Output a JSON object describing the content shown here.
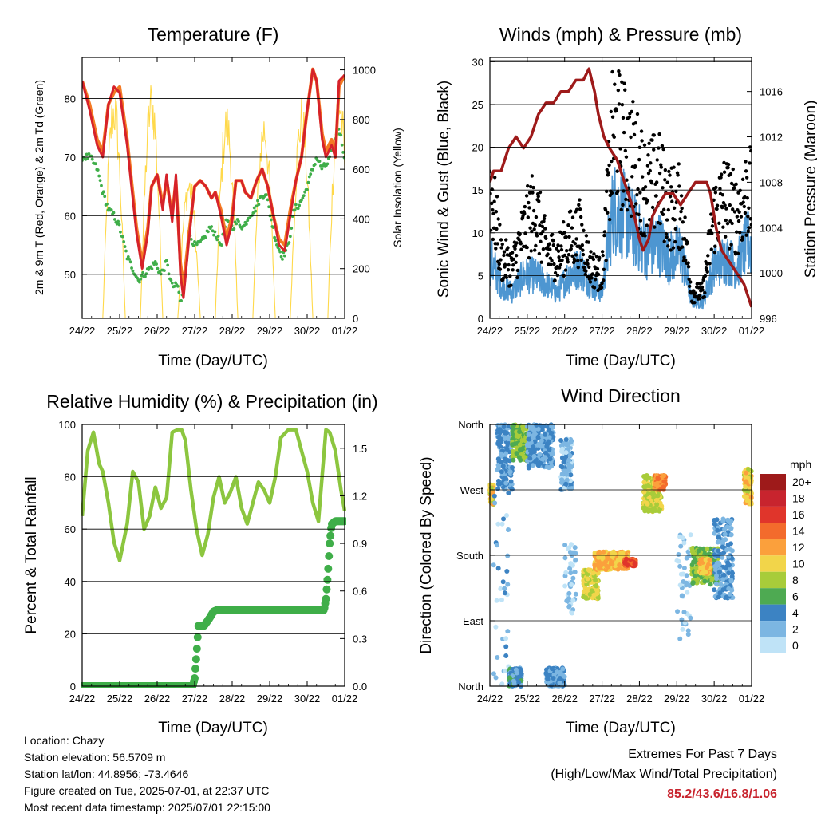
{
  "time_axis": {
    "xlabel": "Time (Day/UTC)",
    "ticks": [
      "24/22",
      "25/22",
      "26/22",
      "27/22",
      "28/22",
      "29/22",
      "30/22",
      "01/22"
    ]
  },
  "chart_data": [
    {
      "id": "temperature",
      "type": "line",
      "title": "Temperature (F)",
      "xlabel": "Time (Day/UTC)",
      "ylabel": "2m & 9m T (Red, Orange) & 2m Td (Green)",
      "ylabel_right": "Solar Insolation (Yellow)",
      "x_range_days": [
        0,
        7
      ],
      "ylim": [
        42.5,
        87
      ],
      "yticks": [
        50,
        60,
        70,
        80
      ],
      "ylim_right": [
        0,
        1050
      ],
      "yticks_right": [
        0,
        200,
        400,
        600,
        800,
        1000
      ],
      "grid": true,
      "series": [
        {
          "key": "t9m",
          "color": "#f47a24",
          "x": [
            0,
            0.2,
            0.4,
            0.55,
            0.7,
            0.85,
            1,
            1.2,
            1.35,
            1.45,
            1.6,
            1.75,
            1.85,
            2,
            2.15,
            2.25,
            2.4,
            2.5,
            2.62,
            2.7,
            2.85,
            3,
            3.15,
            3.3,
            3.45,
            3.55,
            3.7,
            3.85,
            4,
            4.1,
            4.25,
            4.35,
            4.5,
            4.65,
            4.8,
            4.95,
            5.1,
            5.25,
            5.4,
            5.55,
            5.7,
            5.85,
            6,
            6.15,
            6.25,
            6.4,
            6.5,
            6.65,
            6.75,
            6.85,
            7
          ],
          "y": [
            83,
            79,
            73,
            71,
            79,
            81,
            82,
            73,
            64,
            58,
            52,
            58,
            65,
            67,
            62,
            66,
            60,
            66,
            52,
            48,
            57,
            65,
            66,
            65,
            63,
            64,
            61,
            56,
            60,
            66,
            66,
            64,
            63,
            66,
            68,
            65,
            60,
            56,
            55,
            61,
            66,
            70,
            78,
            85,
            83,
            74,
            71,
            73,
            70,
            82,
            84
          ]
        },
        {
          "key": "t2m",
          "color": "#d6222a",
          "x": [
            0,
            0.2,
            0.4,
            0.55,
            0.7,
            0.85,
            1,
            1.2,
            1.35,
            1.45,
            1.6,
            1.75,
            1.85,
            2,
            2.15,
            2.25,
            2.4,
            2.5,
            2.62,
            2.7,
            2.85,
            3,
            3.15,
            3.3,
            3.45,
            3.55,
            3.7,
            3.85,
            4,
            4.1,
            4.25,
            4.35,
            4.5,
            4.65,
            4.8,
            4.95,
            5.1,
            5.25,
            5.4,
            5.55,
            5.7,
            5.85,
            6,
            6.15,
            6.25,
            6.4,
            6.5,
            6.65,
            6.75,
            6.85,
            7
          ],
          "y": [
            83,
            78,
            72,
            70,
            79,
            82,
            81,
            72,
            63,
            57,
            51,
            57,
            65,
            67,
            61,
            67,
            59,
            67,
            50,
            46,
            56,
            65,
            66,
            65,
            63,
            64,
            60,
            55,
            59,
            66,
            66,
            64,
            63,
            66,
            68,
            65,
            60,
            55,
            54,
            60,
            66,
            70,
            78,
            85,
            83,
            73,
            70,
            72,
            70,
            83,
            84
          ]
        },
        {
          "key": "td2m",
          "color": "#3fae49",
          "x": [
            0,
            0.2,
            0.4,
            0.55,
            0.7,
            0.85,
            1,
            1.2,
            1.35,
            1.5,
            1.65,
            1.8,
            1.95,
            2.1,
            2.25,
            2.4,
            2.55,
            2.62,
            2.7,
            2.85,
            3,
            3.1,
            3.25,
            3.4,
            3.55,
            3.7,
            3.85,
            4,
            4.15,
            4.3,
            4.45,
            4.6,
            4.75,
            4.9,
            5.05,
            5.2,
            5.35,
            5.5,
            5.65,
            5.8,
            5.95,
            6.1,
            6.25,
            6.4,
            6.55,
            6.7,
            6.85,
            7
          ],
          "y": [
            70,
            70,
            68,
            64,
            61,
            60,
            58,
            53,
            51,
            49,
            50,
            51,
            52,
            50,
            52,
            48,
            48,
            45,
            47,
            57,
            55,
            55,
            56,
            58,
            57,
            55,
            59,
            58,
            59,
            58,
            60,
            61,
            63,
            64,
            59,
            55,
            53,
            55,
            61,
            62,
            64,
            67,
            70,
            68,
            69,
            72,
            75,
            70
          ]
        },
        {
          "key": "solar",
          "color": "#ffd94a",
          "axis": "right",
          "days": [
            0,
            1,
            2,
            3,
            4,
            5,
            6
          ],
          "peaks": [
            950,
            980,
            600,
            880,
            860,
            900,
            980
          ]
        }
      ]
    },
    {
      "id": "winds",
      "type": "line",
      "title": "Winds (mph) & Pressure (mb)",
      "xlabel": "Time (Day/UTC)",
      "ylabel": "Sonic Wind & Gust (Blue, Black)",
      "ylabel_right": "Station Pressure (Maroon)",
      "x_range_days": [
        0,
        7
      ],
      "ylim": [
        0,
        30.5
      ],
      "yticks": [
        0,
        5,
        10,
        15,
        20,
        25,
        30
      ],
      "ylim_right": [
        996,
        1019
      ],
      "yticks_right": [
        996,
        1000,
        1004,
        1008,
        1012,
        1016
      ],
      "grid": true,
      "series": [
        {
          "key": "wind",
          "color": "#4d96d1",
          "x": [
            0,
            0.3,
            0.6,
            0.9,
            1.2,
            1.5,
            1.8,
            2.1,
            2.4,
            2.7,
            3,
            3.3,
            3.6,
            3.9,
            4.2,
            4.5,
            4.8,
            5.1,
            5.4,
            5.7,
            6,
            6.3,
            6.6,
            6.9,
            7
          ],
          "y": [
            7,
            4,
            3,
            5,
            5,
            4,
            3,
            5,
            6,
            4,
            3,
            13,
            12,
            10,
            8,
            9,
            7,
            8,
            2,
            2,
            6,
            7,
            6,
            9,
            8
          ]
        },
        {
          "key": "gust",
          "color": "#000000",
          "x": [
            0,
            0.3,
            0.6,
            0.9,
            1.2,
            1.5,
            1.8,
            2.1,
            2.4,
            2.7,
            3,
            3.3,
            3.6,
            3.9,
            4.2,
            4.5,
            4.8,
            5.1,
            5.4,
            5.7,
            6,
            6.3,
            6.6,
            6.9,
            7
          ],
          "y": [
            16,
            7,
            6,
            10,
            13,
            8,
            7,
            9,
            10,
            6,
            5,
            22,
            20,
            18,
            15,
            16,
            13,
            13,
            3,
            3,
            12,
            14,
            12,
            15,
            14
          ]
        },
        {
          "key": "pressure",
          "color": "#9e1a1a",
          "axis": "right",
          "x": [
            0,
            0.1,
            0.3,
            0.5,
            0.7,
            0.9,
            1.1,
            1.3,
            1.5,
            1.7,
            1.9,
            2.1,
            2.3,
            2.5,
            2.65,
            2.8,
            2.9,
            3.05,
            3.2,
            3.4,
            3.6,
            3.8,
            4.0,
            4.1,
            4.25,
            4.35,
            4.5,
            4.7,
            4.9,
            5.1,
            5.3,
            5.5,
            5.7,
            5.8,
            5.9,
            6.05,
            6.2,
            6.4,
            6.6,
            6.8,
            7
          ],
          "y": [
            1008,
            1009,
            1009,
            1011,
            1012,
            1011,
            1012,
            1014,
            1015,
            1015,
            1016,
            1016,
            1017,
            1017,
            1018,
            1016,
            1014,
            1012,
            1011,
            1010,
            1008,
            1006,
            1003,
            1002,
            1003,
            1005,
            1006,
            1007,
            1007,
            1006,
            1007,
            1008,
            1008,
            1008,
            1007,
            1004,
            1002,
            1001,
            1000,
            999,
            997
          ]
        }
      ]
    },
    {
      "id": "humidity",
      "type": "line",
      "title": "Relative Humidity (%) & Precipitation (in)",
      "xlabel": "Time (Day/UTC)",
      "ylabel": "Percent & Total Rainfall",
      "x_range_days": [
        0,
        7
      ],
      "ylim": [
        0,
        100
      ],
      "yticks": [
        0,
        20,
        40,
        60,
        80,
        100
      ],
      "ylim_right": [
        0,
        1.65
      ],
      "yticks_right_labels": [
        "0.0",
        "0.3",
        "0.6",
        "0.9",
        "1.2",
        "1.5"
      ],
      "yticks_right": [
        0,
        0.3,
        0.6,
        0.9,
        1.2,
        1.5
      ],
      "grid": true,
      "series": [
        {
          "key": "rh",
          "color": "#8cc63f",
          "x": [
            0,
            0.15,
            0.3,
            0.45,
            0.55,
            0.7,
            0.85,
            1,
            1.2,
            1.35,
            1.5,
            1.65,
            1.8,
            1.95,
            2.1,
            2.25,
            2.4,
            2.55,
            2.65,
            2.75,
            2.9,
            3.05,
            3.2,
            3.35,
            3.5,
            3.65,
            3.8,
            3.95,
            4.1,
            4.25,
            4.4,
            4.55,
            4.7,
            4.85,
            5.0,
            5.15,
            5.3,
            5.5,
            5.7,
            5.85,
            6,
            6.15,
            6.3,
            6.5,
            6.6,
            6.75,
            6.9,
            7
          ],
          "y": [
            65,
            90,
            97,
            85,
            82,
            70,
            55,
            48,
            62,
            82,
            78,
            60,
            65,
            76,
            68,
            72,
            97,
            98,
            98,
            94,
            75,
            60,
            50,
            58,
            72,
            80,
            70,
            74,
            80,
            68,
            62,
            70,
            78,
            75,
            70,
            80,
            95,
            98,
            98,
            90,
            82,
            70,
            63,
            98,
            97,
            90,
            75,
            67
          ]
        },
        {
          "key": "precip",
          "color": "#3fae49",
          "axis": "right",
          "x": [
            0,
            2.5,
            2.95,
            3.0,
            3.05,
            3.1,
            3.25,
            3.4,
            3.5,
            3.6,
            3.8,
            4.2,
            4.6,
            5.0,
            5.4,
            5.8,
            6.2,
            6.45,
            6.5,
            6.55,
            6.6,
            6.65,
            6.75,
            7
          ],
          "y": [
            0,
            0,
            0,
            0.05,
            0.2,
            0.38,
            0.38,
            0.43,
            0.47,
            0.48,
            0.48,
            0.48,
            0.48,
            0.48,
            0.48,
            0.48,
            0.48,
            0.48,
            0.55,
            0.7,
            0.9,
            1.02,
            1.04,
            1.04
          ]
        }
      ]
    },
    {
      "id": "direction",
      "type": "scatter",
      "title": "Wind Direction",
      "xlabel": "Time (Day/UTC)",
      "ylabel": "Direction (Colored By Speed)",
      "x_range_days": [
        0,
        7
      ],
      "ylim": [
        0,
        360
      ],
      "yticks": [
        0,
        90,
        180,
        270,
        360
      ],
      "ytick_labels": [
        "North",
        "East",
        "South",
        "West",
        "North"
      ],
      "grid": true,
      "clusters": [
        {
          "x0": 0.0,
          "x1": 0.1,
          "y0": 250,
          "y1": 280,
          "speed": 10
        },
        {
          "x0": 0.1,
          "x1": 0.5,
          "y0": 0,
          "y1": 360,
          "speed": 2,
          "sparse": true
        },
        {
          "x0": 0.2,
          "x1": 0.6,
          "y0": 270,
          "y1": 360,
          "speed": 3
        },
        {
          "x0": 0.6,
          "x1": 1.0,
          "y0": 310,
          "y1": 360,
          "speed": 7
        },
        {
          "x0": 0.5,
          "x1": 0.85,
          "y0": 0,
          "y1": 25,
          "speed": 4
        },
        {
          "x0": 1.0,
          "x1": 1.7,
          "y0": 300,
          "y1": 360,
          "speed": 3
        },
        {
          "x0": 1.5,
          "x1": 2.0,
          "y0": 0,
          "y1": 25,
          "speed": 3
        },
        {
          "x0": 1.9,
          "x1": 2.2,
          "y0": 270,
          "y1": 340,
          "speed": 2
        },
        {
          "x0": 2.0,
          "x1": 2.3,
          "y0": 100,
          "y1": 200,
          "speed": 1,
          "sparse": true
        },
        {
          "x0": 2.5,
          "x1": 2.9,
          "y0": 120,
          "y1": 160,
          "speed": 9
        },
        {
          "x0": 2.8,
          "x1": 3.7,
          "y0": 160,
          "y1": 185,
          "speed": 11
        },
        {
          "x0": 3.6,
          "x1": 3.9,
          "y0": 165,
          "y1": 175,
          "speed": 15
        },
        {
          "x0": 4.1,
          "x1": 4.6,
          "y0": 240,
          "y1": 290,
          "speed": 9
        },
        {
          "x0": 4.4,
          "x1": 4.7,
          "y0": 270,
          "y1": 290,
          "speed": 13
        },
        {
          "x0": 5.0,
          "x1": 5.4,
          "y0": 60,
          "y1": 240,
          "speed": 1,
          "sparse": true
        },
        {
          "x0": 5.4,
          "x1": 6.1,
          "y0": 140,
          "y1": 190,
          "speed": 7
        },
        {
          "x0": 5.6,
          "x1": 5.9,
          "y0": 155,
          "y1": 175,
          "speed": 11
        },
        {
          "x0": 6.0,
          "x1": 6.5,
          "y0": 120,
          "y1": 230,
          "speed": 3
        },
        {
          "x0": 6.8,
          "x1": 7.0,
          "y0": 250,
          "y1": 300,
          "speed": 10
        }
      ],
      "colorbar": {
        "title": "mph",
        "labels": [
          "20+",
          "18",
          "16",
          "14",
          "12",
          "10",
          "8",
          "6",
          "4",
          "2",
          "0"
        ],
        "colors": [
          "#9e1a1a",
          "#c8242e",
          "#e0352b",
          "#f36b2c",
          "#fba03c",
          "#f2d54a",
          "#a8cc3a",
          "#4eaa52",
          "#3c83c3",
          "#7cb6e2",
          "#bfe3f7"
        ]
      }
    }
  ],
  "info": {
    "location": "Location: Chazy",
    "elevation": "Station elevation: 56.5709 m",
    "latlon": "Station lat/lon: 44.8956; -73.4646",
    "created": "Figure created on Tue, 2025-07-01, at 22:37 UTC",
    "recent": "Most recent data timestamp: 2025/07/01 22:15:00"
  },
  "extremes": {
    "title": "Extremes For Past 7 Days",
    "subtitle": "(High/Low/Max Wind/Total Precipitation)",
    "values": "85.2/43.6/16.8/1.06"
  }
}
